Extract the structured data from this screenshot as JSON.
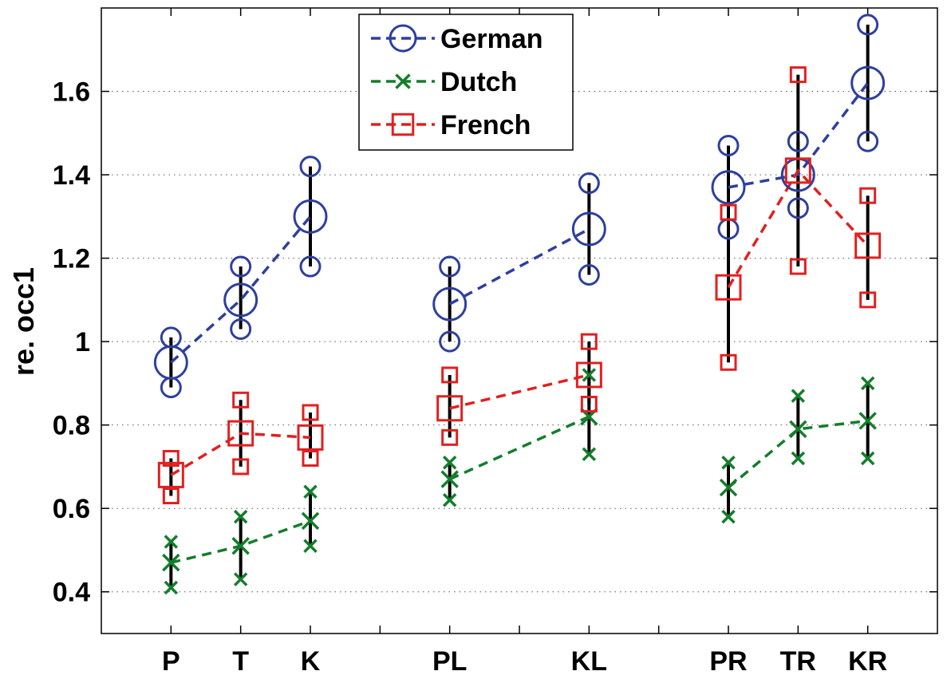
{
  "chart_data": {
    "type": "line",
    "xlabel": "",
    "ylabel": "re. occ1",
    "categories": [
      "P",
      "T",
      "K",
      "PL",
      "KL",
      "PR",
      "TR",
      "KR"
    ],
    "x": [
      1,
      2,
      3,
      5,
      7,
      9,
      10,
      11
    ],
    "xlim": [
      0,
      12
    ],
    "ylim": [
      0.3,
      1.8
    ],
    "yticks": [
      0.4,
      0.6,
      0.8,
      1,
      1.2,
      1.4,
      1.6
    ],
    "ytick_labels": [
      "0.4",
      "0.6",
      "0.8",
      "1",
      "1.2",
      "1.4",
      "1.6"
    ],
    "grid": "horizontal dotted",
    "legend_position": "top-center",
    "series": [
      {
        "name": "German",
        "color": "#2e3f9e",
        "marker": "circle",
        "values": [
          0.95,
          1.1,
          1.3,
          1.09,
          1.27,
          1.37,
          1.4,
          1.62
        ],
        "lower": [
          0.89,
          1.03,
          1.18,
          1.0,
          1.16,
          1.27,
          1.32,
          1.48
        ],
        "upper": [
          1.01,
          1.18,
          1.42,
          1.18,
          1.38,
          1.47,
          1.48,
          1.76
        ]
      },
      {
        "name": "Dutch",
        "color": "#137e2c",
        "marker": "x",
        "values": [
          0.47,
          0.51,
          0.57,
          0.67,
          0.82,
          0.65,
          0.79,
          0.81
        ],
        "lower": [
          0.41,
          0.43,
          0.51,
          0.62,
          0.73,
          0.58,
          0.72,
          0.72
        ],
        "upper": [
          0.52,
          0.58,
          0.64,
          0.71,
          0.92,
          0.71,
          0.87,
          0.9
        ]
      },
      {
        "name": "French",
        "color": "#e02020",
        "marker": "square",
        "values": [
          0.68,
          0.78,
          0.77,
          0.84,
          0.92,
          1.13,
          1.41,
          1.23
        ],
        "lower": [
          0.63,
          0.7,
          0.72,
          0.77,
          0.85,
          0.95,
          1.18,
          1.1
        ],
        "upper": [
          0.72,
          0.86,
          0.83,
          0.92,
          1.0,
          1.31,
          1.64,
          1.35
        ]
      }
    ]
  }
}
